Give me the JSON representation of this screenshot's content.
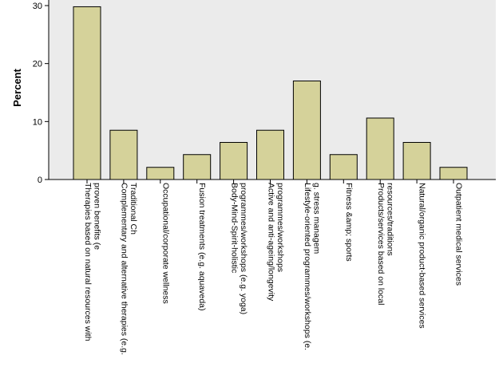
{
  "chart_data": {
    "type": "bar",
    "ylabel": "Percent",
    "xlabel": "",
    "ylim": [
      0,
      30
    ],
    "yticks": [
      0,
      10,
      20,
      30
    ],
    "grid": false,
    "colors": {
      "plot_background": "#ebebeb",
      "bar_fill": "#d5d29a",
      "bar_stroke": "#000000",
      "axis": "#000000"
    },
    "categories": [
      [
        "Therapies based on natural resources with",
        "proven benefits (e"
      ],
      [
        "Complementary and alternative therapies (e.g.",
        "Traditional Ch"
      ],
      [
        "Occupational/corporate wellness"
      ],
      [
        "Fusion treatments (e.g. aquaveda)"
      ],
      [
        "Body-Mind-Spirit-holistic",
        "programmes/workshops (e.g. yoga)"
      ],
      [
        "Active and anti-ageing/longevity",
        "programmes/workshops"
      ],
      [
        "Lifestyle-oriented programmes/workshops (e.",
        "g. stress managem"
      ],
      [
        "Fitness &amp; sports"
      ],
      [
        "Products/services based on local",
        "resources/traditions"
      ],
      [
        "Natural/organic product-based services"
      ],
      [
        "Outpatient medical services"
      ]
    ],
    "values": [
      29.8,
      8.5,
      2.1,
      4.3,
      6.4,
      8.5,
      17.0,
      4.3,
      10.6,
      6.4,
      2.1
    ]
  }
}
